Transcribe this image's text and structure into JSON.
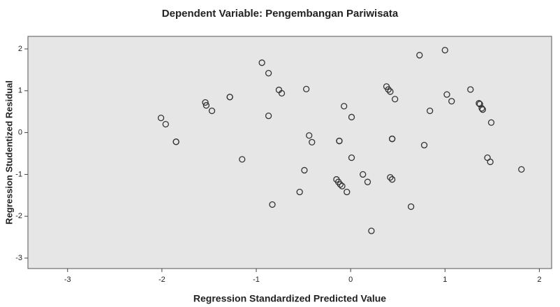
{
  "chart_data": {
    "type": "scatter",
    "title": "Dependent Variable: Pengembangan Pariwisata",
    "x_label": "Regression Standardized Predicted Value",
    "y_label": "Regression Studentized Residual",
    "x": [
      -2.01,
      -1.96,
      -1.85,
      -1.85,
      -1.54,
      -1.53,
      -1.47,
      -1.28,
      -1.28,
      -1.15,
      -0.94,
      -0.87,
      -0.87,
      -0.76,
      -0.73,
      -0.83,
      -0.47,
      -0.49,
      -0.44,
      -0.41,
      -0.54,
      -0.12,
      -0.12,
      -0.07,
      0.01,
      0.01,
      -0.15,
      -0.13,
      -0.11,
      -0.09,
      -0.04,
      0.13,
      0.18,
      0.22,
      0.38,
      0.4,
      0.42,
      0.47,
      0.44,
      0.44,
      0.42,
      0.44,
      0.64,
      0.73,
      1.0,
      0.78,
      0.84,
      1.02,
      1.07,
      1.27,
      1.36,
      1.37,
      1.39,
      1.4,
      1.49,
      1.45,
      1.48,
      1.81
    ],
    "y": [
      0.35,
      0.2,
      -0.22,
      -0.22,
      0.72,
      0.65,
      0.52,
      0.85,
      0.85,
      -0.64,
      1.67,
      1.42,
      0.4,
      1.02,
      0.94,
      -1.72,
      1.04,
      -0.9,
      -0.07,
      -0.23,
      -1.42,
      -0.2,
      -0.2,
      0.63,
      0.37,
      -0.6,
      -1.12,
      -1.18,
      -1.24,
      -1.28,
      -1.42,
      -1.0,
      -1.18,
      -2.35,
      1.1,
      1.03,
      0.98,
      0.8,
      -0.15,
      -0.15,
      -1.07,
      -1.12,
      -1.77,
      1.85,
      1.97,
      -0.3,
      0.52,
      0.91,
      0.75,
      1.03,
      0.7,
      0.68,
      0.58,
      0.55,
      0.24,
      -0.6,
      -0.7,
      -0.88
    ],
    "color": "#333333",
    "xlim": [
      -3.42,
      2.13
    ],
    "ylim": [
      -3.25,
      2.3
    ],
    "xticks": [
      -3,
      -2,
      -1,
      0,
      1,
      2
    ],
    "yticks": [
      -3,
      -2,
      -1,
      0,
      1,
      2
    ]
  }
}
